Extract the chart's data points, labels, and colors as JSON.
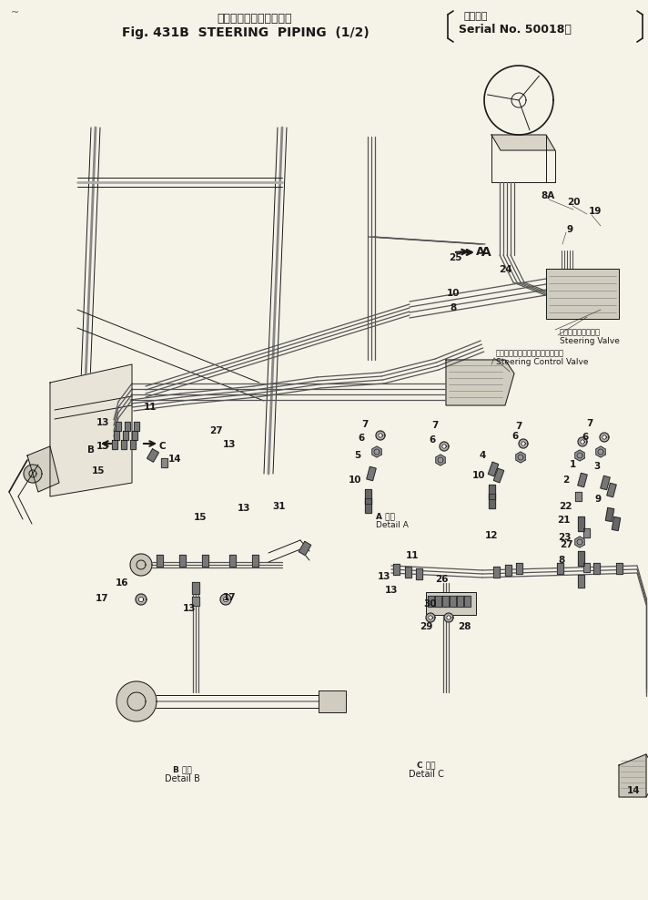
{
  "bg_color": "#f5f2e8",
  "ink_color": "#1a1a1a",
  "fig_width": 7.12,
  "fig_height": 9.88,
  "dpi": 100,
  "title1": "ステアリングパイピング",
  "title2": "Fig. 431B  STEERING  PIPING  (1/2)",
  "serial1": "適用号機",
  "serial2": "Serial No. 50018～",
  "corner_mark": "~",
  "steering_valve_ja": "ステアリングバルブ",
  "steering_valve_en": "Steering Valve",
  "control_valve_ja": "ステアリングコントロールバルブ",
  "control_valve_en": "Steering Control Valve",
  "detail_a_ja": "A 詳細",
  "detail_a_en": "Detail A",
  "detail_b_ja": "B 詳細",
  "detail_b_en": "Detail B",
  "detail_c_ja": "C 詳細",
  "detail_c_en": "Detail C"
}
